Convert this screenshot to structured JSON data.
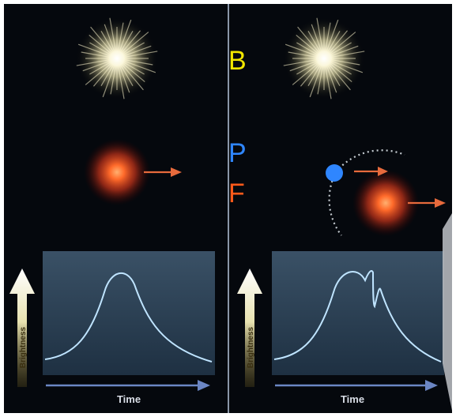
{
  "labels": {
    "b": {
      "text": "B",
      "color": "#f2e600"
    },
    "p": {
      "text": "P",
      "color": "#2f86ff"
    },
    "f": {
      "text": "F",
      "color": "#ff5a1a"
    }
  },
  "panels": [
    {
      "name": "left",
      "axis_y_label": "Brightness",
      "axis_x_label": "Time",
      "curve": "single-peak",
      "source_star_color": "#f5f0c8",
      "lens_star_color": "#ff5a30",
      "planet": false
    },
    {
      "name": "right",
      "axis_y_label": "Brightness",
      "axis_x_label": "Time",
      "curve": "peak-with-planet-spike",
      "source_star_color": "#f5f0c8",
      "lens_star_color": "#ff5a30",
      "planet": true,
      "planet_color": "#2f86ff"
    }
  ],
  "colors": {
    "background": "#05080d",
    "divider": "#8a96a8",
    "graph_top": "#3a5166",
    "graph_bottom": "#213244",
    "curve": "#bfe4ff",
    "time_arrow": "#6b86c4",
    "motion_arrow": "#e76a3c"
  }
}
